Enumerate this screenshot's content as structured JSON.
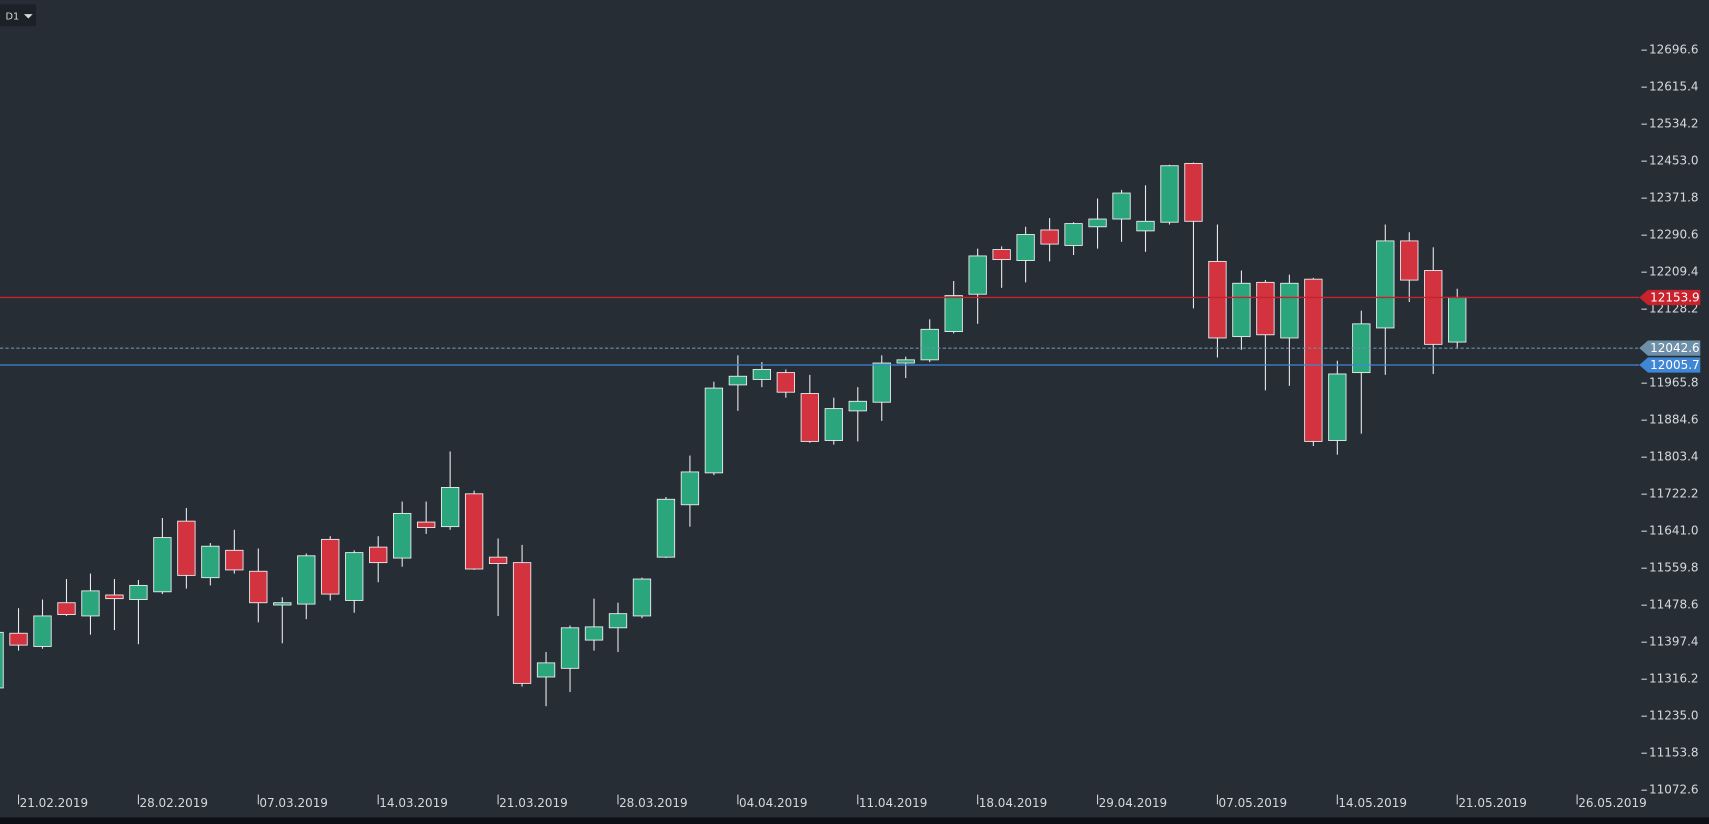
{
  "toolbar": {
    "timeframe": "D1"
  },
  "chart_data": {
    "type": "candlestick",
    "categories": [
      null,
      "21.02.2019",
      null,
      null,
      null,
      null,
      "28.02.2019",
      null,
      null,
      null,
      null,
      "07.03.2019",
      null,
      null,
      null,
      null,
      "14.03.2019",
      null,
      null,
      null,
      null,
      "21.03.2019",
      null,
      null,
      null,
      null,
      "28.03.2019",
      null,
      null,
      null,
      null,
      "04.04.2019",
      null,
      null,
      null,
      null,
      "11.04.2019",
      null,
      null,
      null,
      null,
      "18.04.2019",
      null,
      null,
      null,
      null,
      "29.04.2019",
      null,
      null,
      null,
      null,
      "07.05.2019",
      null,
      null,
      null,
      null,
      "14.05.2019",
      null,
      null,
      null,
      null,
      "21.05.2019",
      null,
      null,
      null,
      null,
      "26.05.2019"
    ],
    "open": [
      11297,
      11417,
      11388,
      11484,
      11455,
      11501,
      11491,
      11508,
      11663,
      11539,
      11599,
      11553,
      11479,
      11481,
      11623,
      11489,
      11606,
      11582,
      11661,
      11651,
      11723,
      11584,
      11572,
      11321,
      11340,
      11402,
      11429,
      11455,
      11584,
      11699,
      11769,
      11962,
      11974,
      11989,
      11943,
      11840,
      11905,
      11924,
      12010,
      12017,
      12079,
      12161,
      12259,
      12235,
      12302,
      12268,
      12309,
      12326,
      12300,
      12319,
      12448,
      12233,
      12068,
      12187,
      12065,
      12194,
      11840,
      11989,
      12087,
      12278,
      12213,
      12056,
      null,
      null,
      null,
      null,
      null
    ],
    "high": [
      11431,
      11472,
      11491,
      11536,
      11548,
      11536,
      11534,
      11670,
      11692,
      11615,
      11644,
      11603,
      11496,
      11592,
      11630,
      11599,
      11630,
      11706,
      11706,
      11816,
      11730,
      11625,
      11611,
      11376,
      11434,
      11493,
      11484,
      11539,
      11716,
      11807,
      11969,
      12027,
      12012,
      11996,
      11984,
      11934,
      11957,
      12027,
      12024,
      12106,
      12190,
      12261,
      12266,
      12309,
      12328,
      12319,
      12371,
      12390,
      12400,
      12445,
      12450,
      12314,
      12213,
      12192,
      12204,
      12197,
      12015,
      12125,
      12314,
      12297,
      12264,
      12173,
      null,
      null,
      null,
      null,
      null
    ],
    "low": [
      11290,
      11379,
      11383,
      11455,
      11414,
      11424,
      11393,
      11503,
      11515,
      11522,
      11548,
      11441,
      11395,
      11448,
      11489,
      11462,
      11529,
      11563,
      11635,
      11644,
      11556,
      11455,
      11300,
      11257,
      11288,
      11379,
      11376,
      11450,
      11582,
      11651,
      11764,
      11905,
      11957,
      11934,
      11835,
      11831,
      11838,
      11883,
      11977,
      12012,
      12075,
      12096,
      12175,
      12187,
      12233,
      12247,
      12261,
      12276,
      12254,
      12314,
      12130,
      12022,
      12039,
      11950,
      11960,
      11828,
      11809,
      11855,
      11984,
      12144,
      11986,
      12041,
      null,
      null,
      null,
      null,
      null
    ],
    "close": [
      11419,
      11391,
      11455,
      11458,
      11510,
      11493,
      11522,
      11627,
      11544,
      11608,
      11556,
      11484,
      11484,
      11587,
      11503,
      11594,
      11572,
      11680,
      11649,
      11737,
      11558,
      11570,
      11307,
      11352,
      11429,
      11431,
      11460,
      11536,
      11711,
      11771,
      11955,
      11981,
      11996,
      11946,
      11838,
      11910,
      11926,
      12010,
      12017,
      12084,
      12158,
      12245,
      12237,
      12292,
      12271,
      12316,
      12326,
      12383,
      12321,
      12443,
      12321,
      12065,
      12185,
      12072,
      12185,
      11838,
      11986,
      12096,
      12278,
      12192,
      12051,
      12154,
      null,
      null,
      null,
      null,
      null
    ],
    "up_color": "#2ba57b",
    "down_color": "#d2333f",
    "ylim": [
      11072.6,
      12696.6
    ],
    "yticks": [
      12696.6,
      12615.4,
      12534.2,
      {
        "value": 12453,
        "label": "12453.0"
      },
      12371.8,
      12290.6,
      12209.4,
      12128.2,
      11965.8,
      11884.6,
      11803.4,
      11722.2,
      {
        "value": 11641,
        "label": "11641.0"
      },
      11559.8,
      11478.6,
      11397.4,
      11316.2,
      {
        "value": 11235,
        "label": "11235.0"
      },
      11153.8,
      11072.6
    ],
    "price_lines": [
      {
        "value": 12153.9,
        "color": "#c8232d",
        "style": "solid"
      },
      {
        "value": 12042.6,
        "color": "#6e8fa8",
        "style": "dashed"
      },
      {
        "value": 12005.7,
        "color": "#3f86d6",
        "style": "solid"
      }
    ]
  }
}
